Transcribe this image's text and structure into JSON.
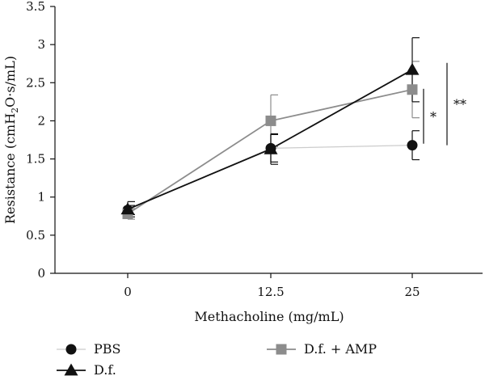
{
  "chart_data": {
    "type": "line",
    "xlabel": "Methacholine (mg/mL)",
    "ylabel": "Resistance (cmH2O·s/mL)",
    "ylabel_parts": [
      "Resistance (cmH",
      "2",
      "O·s/mL)"
    ],
    "categories": [
      "0",
      "12.5",
      "25"
    ],
    "ylim": [
      0,
      3.5
    ],
    "yticks": [
      "0",
      "0.5",
      "1",
      "1.5",
      "2",
      "2.5",
      "3",
      "3.5"
    ],
    "grid": false,
    "legend_position": "bottom",
    "series": [
      {
        "name": "PBS",
        "marker": "circle",
        "color": "#111111",
        "line_color": "#cccccc",
        "values": [
          0.83,
          1.64,
          1.68
        ],
        "errors": [
          0.06,
          0.18,
          0.19
        ]
      },
      {
        "name": "D.f.",
        "marker": "triangle",
        "color": "#111111",
        "line_color": "#111111",
        "values": [
          0.84,
          1.63,
          2.67
        ],
        "errors": [
          0.1,
          0.2,
          0.42
        ]
      },
      {
        "name": "D.f. + AMP",
        "marker": "square",
        "color": "#8c8c8c",
        "line_color": "#8c8c8c",
        "values": [
          0.78,
          2.0,
          2.41
        ],
        "errors": [
          0.07,
          0.34,
          0.37
        ]
      }
    ],
    "annotations": [
      {
        "label": "*",
        "from_value": 1.7,
        "to_value": 2.42
      },
      {
        "label": "**",
        "from_value": 1.68,
        "to_value": 2.76
      }
    ]
  }
}
